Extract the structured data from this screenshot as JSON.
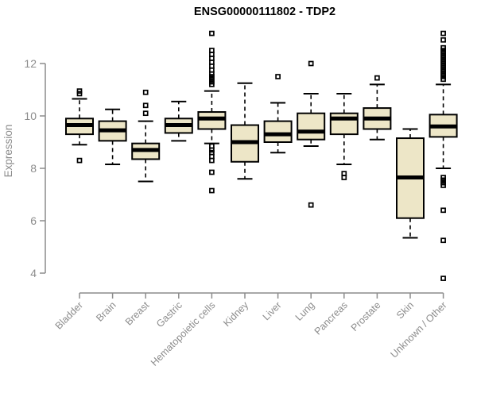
{
  "colors": {
    "background": "#ffffff",
    "box_fill": "#ede6c7",
    "box_border": "#000000",
    "median": "#000000",
    "whisker": "#000000",
    "outlier": "#000000",
    "axis": "#8c8c8c",
    "tick_label": "#8c8c8c",
    "title": "#000000"
  },
  "chart_data": {
    "type": "boxplot",
    "title": "ENSG00000111802 - TDP2",
    "xlabel": "",
    "ylabel": "Expression",
    "ylim": [
      3.6,
      13.3
    ],
    "yticks": [
      4,
      6,
      8,
      10,
      12
    ],
    "grid": false,
    "legend": "none",
    "categories": [
      "Bladder",
      "Brain",
      "Breast",
      "Gastric",
      "Hematopoietic cells",
      "Kidney",
      "Liver",
      "Lung",
      "Pancreas",
      "Prostate",
      "Skin",
      "Unknown / Other"
    ],
    "series": [
      {
        "category": "Bladder",
        "low": 8.9,
        "q1": 9.3,
        "median": 9.65,
        "q3": 9.9,
        "high": 10.65,
        "outliers": [
          10.95,
          10.85,
          8.3
        ]
      },
      {
        "category": "Brain",
        "low": 8.15,
        "q1": 9.05,
        "median": 9.45,
        "q3": 9.8,
        "high": 10.25,
        "outliers": []
      },
      {
        "category": "Breast",
        "low": 7.5,
        "q1": 8.35,
        "median": 8.7,
        "q3": 8.95,
        "high": 9.8,
        "outliers": [
          10.9,
          10.4,
          10.1
        ]
      },
      {
        "category": "Gastric",
        "low": 9.05,
        "q1": 9.35,
        "median": 9.65,
        "q3": 9.9,
        "high": 10.55,
        "outliers": []
      },
      {
        "category": "Hematopoietic cells",
        "low": 8.95,
        "q1": 9.5,
        "median": 9.9,
        "q3": 10.15,
        "high": 10.95,
        "outliers": [
          13.15,
          12.5,
          12.35,
          12.2,
          12.05,
          11.9,
          11.75,
          11.6,
          11.5,
          11.4,
          11.3,
          11.2,
          8.85,
          8.7,
          8.6,
          8.45,
          8.3,
          7.85,
          7.15
        ]
      },
      {
        "category": "Kidney",
        "low": 7.6,
        "q1": 8.25,
        "median": 9.0,
        "q3": 9.65,
        "high": 11.25,
        "outliers": []
      },
      {
        "category": "Liver",
        "low": 8.6,
        "q1": 9.0,
        "median": 9.3,
        "q3": 9.8,
        "high": 10.5,
        "outliers": [
          11.5
        ]
      },
      {
        "category": "Lung",
        "low": 8.85,
        "q1": 9.1,
        "median": 9.4,
        "q3": 10.1,
        "high": 10.85,
        "outliers": [
          12.0,
          6.6
        ]
      },
      {
        "category": "Pancreas",
        "low": 8.15,
        "q1": 9.3,
        "median": 9.9,
        "q3": 10.1,
        "high": 10.85,
        "outliers": [
          7.8,
          7.65
        ]
      },
      {
        "category": "Prostate",
        "low": 9.1,
        "q1": 9.5,
        "median": 9.9,
        "q3": 10.3,
        "high": 11.2,
        "outliers": [
          11.45
        ]
      },
      {
        "category": "Skin",
        "low": 5.35,
        "q1": 6.1,
        "median": 7.65,
        "q3": 9.15,
        "high": 9.5,
        "outliers": []
      },
      {
        "category": "Unknown / Other",
        "low": 8.0,
        "q1": 9.2,
        "median": 9.6,
        "q3": 10.05,
        "high": 11.2,
        "outliers": [
          13.15,
          12.9,
          12.6,
          12.5,
          12.4,
          12.3,
          12.2,
          12.1,
          12.0,
          11.9,
          11.8,
          11.7,
          11.6,
          11.5,
          11.4,
          7.65,
          7.55,
          7.45,
          7.35,
          6.4,
          5.25,
          3.8
        ]
      }
    ]
  }
}
